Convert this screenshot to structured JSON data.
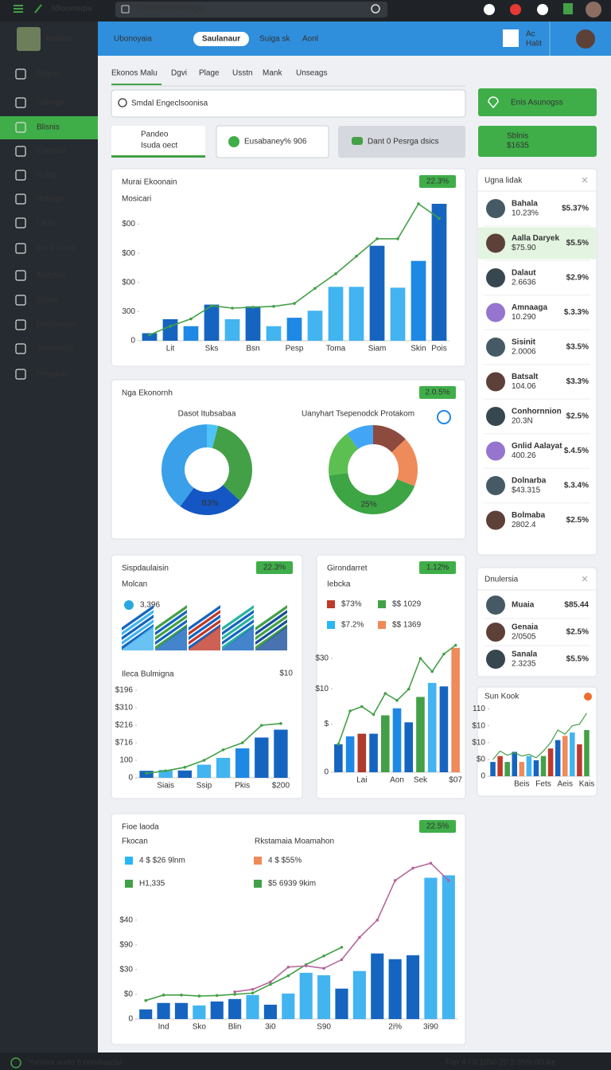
{
  "topbar": {
    "app": "Idloonoqia",
    "search": "Ekdulad Eslonogja"
  },
  "sidebar": {
    "user": "Beatias",
    "items": [
      "Blignis",
      "Salorge",
      "Blisnis",
      "Earlinon",
      "Enlog",
      "Bdhogs",
      "Lilnis",
      "Eanli Uons",
      "Acegore",
      "Bisnie",
      "Deelmaode",
      "Sdeosisds",
      "Pregaida"
    ],
    "active": 2
  },
  "header": {
    "title": "Ubonoyaia",
    "button": "Saulanaur",
    "links": [
      "Suiga sk",
      "Aonl"
    ],
    "user": [
      "Ac",
      "Halit"
    ]
  },
  "tabs": {
    "items": [
      "Ekonos Malu",
      "Dgvi",
      "Plage",
      "Usstn",
      "Mank",
      "Unseags"
    ],
    "active": 0
  },
  "search_placeholder": "Smdal Engeclsoonisa",
  "action_button": "Enis Asunogss",
  "cards": [
    {
      "title": "Pandeo",
      "subtitle": "Isuda oect"
    },
    {
      "title": "Eusabaney% 906"
    },
    {
      "title": "Dant 0 Pesrga dsics"
    }
  ],
  "stat_card": {
    "title": "Sblnis",
    "value": "$1635"
  },
  "chart_data": [
    {
      "type": "bar",
      "title": "Murai Ekoonain",
      "badge": "22.3%",
      "subtitle": "Mosicari",
      "categories": [
        null,
        "Lit",
        null,
        "Sks",
        null,
        "Bsn",
        null,
        "Pesp",
        null,
        "Toma",
        null,
        "Siam",
        null,
        "Skin",
        "Pois"
      ],
      "series": [
        {
          "kind": "bar",
          "colors": [
            "#1565c0",
            "#1565c0",
            "#1e88e5",
            "#1565c0",
            "#42b4f0",
            "#1565c0",
            "#42b4f0",
            "#1e88e5",
            "#42b4f0",
            "#42b4f0",
            "#42b4f0",
            "#1565c0",
            "#42b4f0",
            "#1e88e5",
            "#1565c0"
          ],
          "values": [
            26,
            74,
            50,
            124,
            74,
            118,
            50,
            79,
            103,
            185,
            185,
            326,
            182,
            274,
            470
          ]
        },
        {
          "kind": "line",
          "color": "#43a047",
          "values": [
            20,
            50,
            75,
            120,
            112,
            115,
            118,
            128,
            180,
            230,
            290,
            350,
            350,
            470,
            420
          ]
        }
      ],
      "ylim": [
        0,
        500
      ],
      "yticks": [
        0,
        {
          "value": 100,
          "label": "300"
        },
        {
          "value": 200,
          "label": "$00"
        },
        {
          "value": 300,
          "label": "$00"
        },
        {
          "value": 400,
          "label": "$00"
        }
      ]
    },
    {
      "type": "pie",
      "title": "Nga Ekonornh",
      "badge": "2.0.5%",
      "pies": [
        {
          "label": "Dasot Itubsabaa",
          "values": [
            4,
            33,
            23,
            40
          ],
          "colors": [
            "#4fc3f7",
            "#43a047",
            "#1456c4",
            "#3aa0ea"
          ],
          "annotation": "B3%"
        },
        {
          "label": "Uanyhart Tsepenodck Protakom",
          "values": [
            13,
            18,
            42,
            17,
            10
          ],
          "colors": [
            "#8d4a3f",
            "#ef8a5a",
            "#3da544",
            "#5cbf52",
            "#42a5f5"
          ],
          "annotation": "25%"
        }
      ]
    },
    {
      "type": "bar",
      "title": "Sispdaulaisin",
      "badge": "22.3%",
      "subtitle": "Molcan",
      "metric": "3,396",
      "subchart_title": "Ileca Bulmigna",
      "subchart_value": "$10",
      "categories": [
        null,
        "Siais",
        null,
        "Ssip",
        null,
        "Pkis",
        null,
        "$200"
      ],
      "series": [
        {
          "kind": "bar",
          "colors": [
            "#1565c0",
            "#42b4f0",
            "#1565c0",
            "#42b4f0",
            "#42b4f0",
            "#1e88e5",
            "#1565c0",
            "#1565c0"
          ],
          "values": [
            40,
            45,
            42,
            75,
            114,
            168,
            230,
            275
          ]
        },
        {
          "kind": "line",
          "color": "#43a047",
          "values": [
            25,
            40,
            60,
            100,
            160,
            200,
            300,
            310
          ]
        }
      ],
      "ylim": [
        0,
        550
      ],
      "yticks": [
        0,
        100,
        {
          "value": 200,
          "label": "$716"
        },
        {
          "value": 300,
          "label": "$216"
        },
        {
          "value": 400,
          "label": "$310"
        },
        {
          "value": 500,
          "label": "$196"
        }
      ]
    },
    {
      "type": "bar",
      "title": "Girondarret",
      "badge": "1.12%",
      "subtitle": "Iebcka",
      "legend": [
        {
          "label": "$73%",
          "color": "#c0392b"
        },
        {
          "label": "$$ 1029",
          "color": "#43a047"
        },
        {
          "label": "$7.2%",
          "color": "#29b6f6"
        },
        {
          "label": "$$ 1369",
          "color": "#ef8a5a"
        }
      ],
      "categories": [
        null,
        null,
        "Lai",
        null,
        null,
        "Aon",
        null,
        "Sek",
        null,
        null,
        "$07"
      ],
      "series": [
        {
          "kind": "bar",
          "colors": [
            "#1565c0",
            "#1e88e5",
            "#b03a2e",
            "#1565c0",
            "#43a047",
            "#1e88e5",
            "#1565c0",
            "#43a047",
            "#42b4f0",
            "#1565c0",
            "#ef8a5a"
          ],
          "values": [
            32,
            41,
            44,
            44,
            65,
            73,
            57,
            86,
            102,
            98,
            142
          ]
        },
        {
          "kind": "line",
          "color": "#43a047",
          "values": [
            32,
            70,
            75,
            66,
            90,
            82,
            95,
            130,
            115,
            135,
            145
          ]
        }
      ],
      "ylim": [
        0,
        150
      ],
      "yticks": [
        0,
        {
          "value": 55,
          "label": "$"
        },
        {
          "value": 95,
          "label": "$10"
        },
        {
          "value": 130,
          "label": "$30"
        }
      ]
    },
    {
      "type": "bar",
      "title": "Fioe laoda",
      "badge": "22.5%",
      "subtitle": "Fkocan",
      "subtitle2": "Rkstamaia Moamahon",
      "legend": [
        {
          "label": "4 $ $26 9lnm",
          "color": "#29b6f6"
        },
        {
          "label": "4 $ $55%",
          "color": "#ef8a5a"
        },
        {
          "label": "H1,335",
          "color": "#43a047"
        },
        {
          "label": "$5 6939 9kim",
          "color": "#43a047"
        }
      ],
      "categories": [
        null,
        "Ind",
        null,
        "Sko",
        null,
        "Blin",
        null,
        "3i0",
        null,
        null,
        "S90",
        null,
        null,
        null,
        "2i%",
        null,
        "3i90",
        null
      ],
      "series": [
        {
          "kind": "bar",
          "colors": [
            "#1565c0",
            "#1565c0",
            "#1565c0",
            "#42b4f0",
            "#1565c0",
            "#1565c0",
            "#42b4f0",
            "#1565c0",
            "#42b4f0",
            "#42b4f0",
            "#42b4f0",
            "#1565c0",
            "#42b4f0",
            "#1565c0",
            "#1565c0",
            "#1565c0",
            "#42b4f0",
            "#42b4f0"
          ],
          "values": [
            39,
            65,
            65,
            55,
            71,
            81,
            97,
            58,
            103,
            187,
            177,
            123,
            194,
            265,
            242,
            258,
            571,
            581
          ]
        },
        {
          "kind": "line",
          "color": "#43a047",
          "values": [
            75,
            97,
            97,
            93,
            95,
            100,
            105,
            140,
            175,
            220,
            255,
            290,
            null,
            null,
            null,
            null,
            null,
            null
          ]
        },
        {
          "kind": "line",
          "color": "#b5679a",
          "values": [
            null,
            null,
            null,
            null,
            null,
            110,
            120,
            150,
            210,
            215,
            205,
            240,
            330,
            400,
            560,
            610,
            630,
            560
          ]
        }
      ],
      "ylim": [
        0,
        650
      ],
      "yticks": [
        0,
        {
          "value": 100,
          "label": "$0"
        },
        {
          "value": 200,
          "label": "$30"
        },
        {
          "value": 300,
          "label": "$90"
        },
        {
          "value": 400,
          "label": "$40"
        }
      ]
    },
    {
      "type": "bar",
      "title": "Sun Kook",
      "categories": [
        null,
        null,
        null,
        null,
        "Beis",
        null,
        null,
        "Fets",
        null,
        null,
        "Aeis",
        null,
        null,
        "Kais"
      ],
      "series": [
        {
          "kind": "bar",
          "colors": [
            "#1565c0",
            "#c0392b",
            "#43a047",
            "#1565c0",
            "#ef8a5a",
            "#42b4f0",
            "#1565c0",
            "#43a047",
            "#c0392b",
            "#1565c0",
            "#ef8a5a",
            "#42b4f0",
            "#c0392b",
            "#43a047"
          ],
          "values": [
            17,
            24,
            17,
            29,
            17,
            24,
            19,
            24,
            33,
            43,
            48,
            52,
            38,
            55
          ]
        },
        {
          "kind": "line",
          "color": "#43a047",
          "values": [
            20,
            30,
            25,
            28,
            24,
            26,
            22,
            30,
            40,
            55,
            50,
            60,
            62,
            75
          ]
        }
      ],
      "ylim": [
        0,
        90
      ],
      "yticks": [
        0,
        {
          "value": 20,
          "label": "$0"
        },
        {
          "value": 40,
          "label": "$10"
        },
        {
          "value": 60,
          "label": "$10"
        },
        {
          "value": 80,
          "label": "110"
        }
      ]
    }
  ],
  "lists": [
    {
      "title": "Ugna lidak",
      "highlight": 1,
      "items": [
        {
          "name": "Bahala",
          "detail": "10.23%",
          "value": "$5.37%",
          "color": "#29a8e0"
        },
        {
          "name": "Aalla Daryek",
          "detail": "$75.90",
          "value": "$5.5%",
          "color": "#43a047"
        },
        {
          "name": "Dalaut",
          "detail": "2.6636",
          "value": "$2.9%",
          "color": "#43a047"
        },
        {
          "name": "Amnaaga",
          "detail": "10.290",
          "value": "$.3.3%",
          "color": "#e0468a"
        },
        {
          "name": "Sisinit",
          "detail": "2.0006",
          "value": "$3.5%",
          "color": "#43a047"
        },
        {
          "name": "Batsalt",
          "detail": "104.06",
          "value": "$3.3%",
          "color": "#43a047"
        },
        {
          "name": "Conhornnion",
          "detail": "20.3N",
          "value": "$2.5%",
          "color": "#f0b429"
        },
        {
          "name": "Gnlid Aalayat",
          "detail": "400.26",
          "value": "$.4.5%",
          "color": "#29a8e0"
        },
        {
          "name": "Dolnarba",
          "detail": "$43.315",
          "value": "$.3.4%",
          "color": "#f0b429"
        },
        {
          "name": "Bolmaba",
          "detail": "2802.4",
          "value": "$2.5%",
          "color": "#43a047"
        }
      ]
    },
    {
      "title": "Dnulersia",
      "items": [
        {
          "name": "Muaia",
          "value": "$85.44",
          "color": "#43a047"
        },
        {
          "name": "Genaia",
          "detail": "2/0505",
          "value": "$2.5%",
          "color": "#43a047"
        },
        {
          "name": "Sanala",
          "detail": "2.3235",
          "value": "$5.5%",
          "color": "#ef6c2a"
        }
      ]
    }
  ],
  "footer": {
    "status": "Yoonna aodn 6 nondaacial",
    "info": "Fan 4 / 0:1050 20 2:35%:00:4a"
  }
}
